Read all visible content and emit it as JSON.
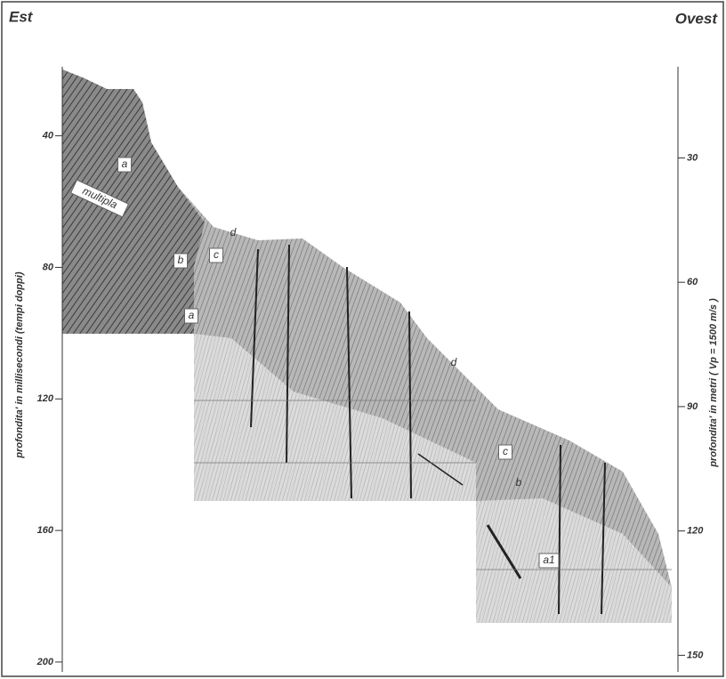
{
  "header": {
    "left": "Est",
    "right": "Ovest"
  },
  "left_axis": {
    "label": "profondita' in millisecondi  (tempi doppi)",
    "lim": [
      19,
      203
    ],
    "ticks": [
      40,
      80,
      120,
      160,
      200
    ]
  },
  "right_axis": {
    "label": "profondita' in metri  ( Vp = 1500 m/s )",
    "lim": [
      8,
      154
    ],
    "ticks": [
      30,
      60,
      90,
      120,
      150
    ]
  },
  "annotations": [
    "a",
    "multipla",
    "b",
    "c",
    "d",
    "a",
    "d",
    "c",
    "b",
    "a1"
  ]
}
